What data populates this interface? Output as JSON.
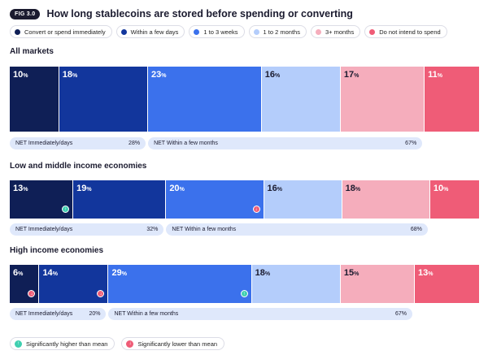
{
  "header": {
    "fig_label": "FIG 3.0",
    "title": "How long stablecoins are stored before spending or converting"
  },
  "colors": {
    "convert": "#0f1f56",
    "few_days": "#12369c",
    "one_three_weeks": "#3b71ec",
    "one_two_months": "#b4cdfb",
    "three_plus_months": "#f5adbc",
    "not_intend": "#ef5c77",
    "sig_higher": "#3fcfb0",
    "sig_lower": "#ef5c77"
  },
  "legend": [
    {
      "label": "Convert or spend immediately",
      "color": "#0f1f56"
    },
    {
      "label": "Within a few days",
      "color": "#12369c"
    },
    {
      "label": "1 to 3 weeks",
      "color": "#3b71ec"
    },
    {
      "label": "1 to 2 months",
      "color": "#b4cdfb"
    },
    {
      "label": "3+ months",
      "color": "#f5adbc"
    },
    {
      "label": "Do not intend to spend",
      "color": "#ef5c77"
    }
  ],
  "chart_data": {
    "type": "bar",
    "orientation": "horizontal-stacked",
    "categories": [
      "Convert or spend immediately",
      "Within a few days",
      "1 to 3 weeks",
      "1 to 2 months",
      "3+ months",
      "Do not intend to spend"
    ],
    "series": [
      {
        "name": "All markets",
        "values": [
          10,
          18,
          23,
          16,
          17,
          11
        ],
        "markers": [
          null,
          null,
          null,
          null,
          null,
          null
        ],
        "net": [
          {
            "label": "NET Immediately/days",
            "value": "28%"
          },
          {
            "label": "NET Within a few months",
            "value": "67%"
          }
        ]
      },
      {
        "name": "Low and middle income economies",
        "values": [
          13,
          19,
          20,
          16,
          18,
          10
        ],
        "markers": [
          "higher",
          null,
          "lower",
          null,
          null,
          null
        ],
        "net": [
          {
            "label": "NET Immediately/days",
            "value": "32%"
          },
          {
            "label": "NET Within a few months",
            "value": "68%"
          }
        ]
      },
      {
        "name": "High income economies",
        "values": [
          6,
          14,
          29,
          18,
          15,
          13
        ],
        "markers": [
          "lower",
          "lower",
          "higher",
          null,
          null,
          null
        ],
        "net": [
          {
            "label": "NET Immediately/days",
            "value": "20%"
          },
          {
            "label": "NET Within a few months",
            "value": "67%"
          }
        ]
      }
    ],
    "value_unit": "%"
  },
  "significance": {
    "higher": {
      "label": "Significantly higher than mean",
      "glyph": "↑"
    },
    "lower": {
      "label": "Significantly lower than mean",
      "glyph": "↓"
    }
  }
}
